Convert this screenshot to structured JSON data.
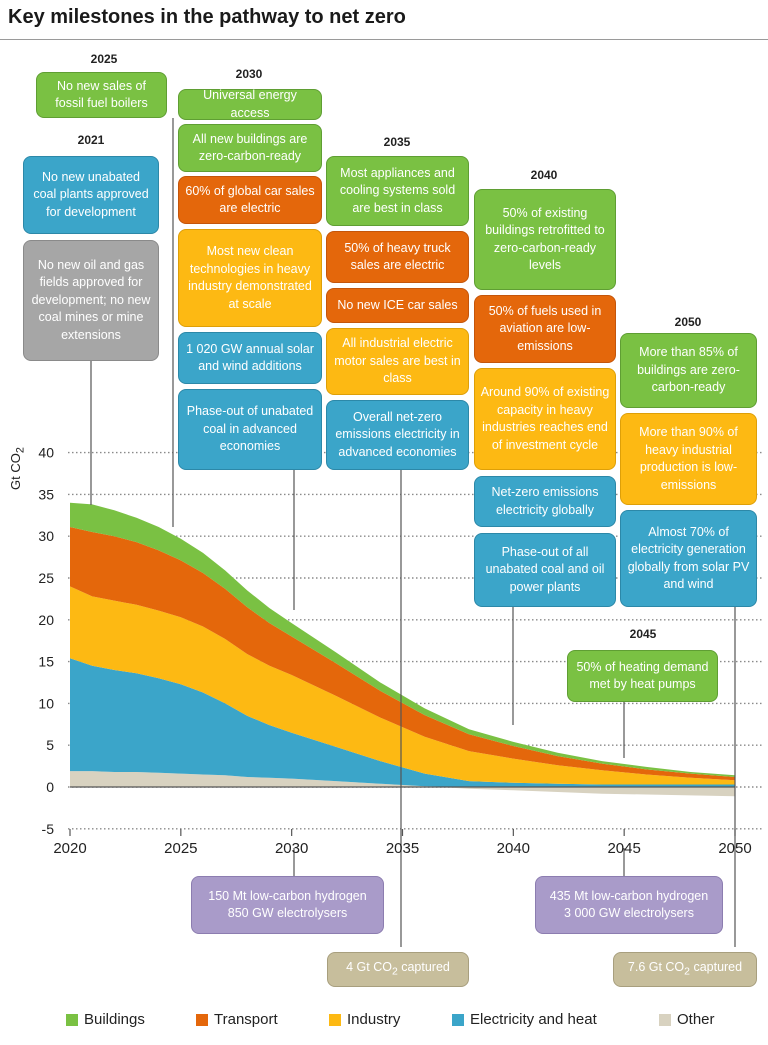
{
  "title": "Key milestones in the pathway to net zero",
  "colors": {
    "buildings": "#7ac143",
    "transport": "#e4670b",
    "industry": "#fdb913",
    "electricity": "#3ba5c9",
    "other": "#d8d2c0"
  },
  "chart_data": {
    "type": "area",
    "ylabel": "Gt CO",
    "ylabel_sub": "2",
    "ylim": [
      -5,
      40
    ],
    "yticks": [
      "40",
      "35",
      "30",
      "25",
      "20",
      "15",
      "10",
      "5",
      "0",
      "-5"
    ],
    "xticks": [
      "2020",
      "2025",
      "2030",
      "2035",
      "2040",
      "2045",
      "2050"
    ],
    "x": [
      2020,
      2021,
      2022,
      2023,
      2024,
      2025,
      2026,
      2027,
      2028,
      2029,
      2030,
      2032,
      2034,
      2036,
      2038,
      2040,
      2042,
      2044,
      2046,
      2048,
      2050
    ],
    "series": [
      {
        "name": "Other",
        "values": [
          1.9,
          1.9,
          1.8,
          1.8,
          1.7,
          1.6,
          1.5,
          1.4,
          1.2,
          1.1,
          1.0,
          0.7,
          0.4,
          0.1,
          -0.2,
          -0.4,
          -0.6,
          -0.8,
          -0.9,
          -1.0,
          -1.1
        ]
      },
      {
        "name": "Electricity and heat",
        "values": [
          13.5,
          12.6,
          12.2,
          11.8,
          11.3,
          10.7,
          9.8,
          8.6,
          7.3,
          6.3,
          5.5,
          4.1,
          2.7,
          1.5,
          0.7,
          0.5,
          0.4,
          0.3,
          0.3,
          0.3,
          0.3
        ]
      },
      {
        "name": "Industry",
        "values": [
          8.6,
          8.3,
          8.3,
          8.2,
          8.1,
          8.0,
          7.9,
          7.7,
          7.4,
          7.1,
          6.9,
          6.1,
          5.2,
          4.4,
          3.6,
          2.9,
          2.2,
          1.7,
          1.2,
          0.8,
          0.5
        ]
      },
      {
        "name": "Transport",
        "values": [
          7.1,
          7.7,
          7.7,
          7.5,
          7.2,
          6.8,
          6.4,
          6.0,
          5.6,
          5.1,
          4.6,
          3.9,
          3.2,
          2.6,
          2.0,
          1.5,
          1.1,
          0.8,
          0.6,
          0.5,
          0.4
        ]
      },
      {
        "name": "Buildings",
        "values": [
          2.9,
          3.3,
          3.1,
          2.9,
          2.8,
          2.6,
          2.4,
          2.2,
          2.0,
          1.8,
          1.6,
          1.3,
          1.0,
          0.8,
          0.6,
          0.5,
          0.4,
          0.3,
          0.3,
          0.2,
          0.2
        ]
      }
    ],
    "legend": [
      "Buildings",
      "Transport",
      "Industry",
      "Electricity and heat",
      "Other"
    ],
    "legend_position": "bottom"
  },
  "years": {
    "y2025": "2025",
    "y2030": "2030",
    "y2021": "2021",
    "y2035": "2035",
    "y2040": "2040",
    "y2050": "2050",
    "y2045": "2045"
  },
  "milestones": {
    "fossil_boilers": "No new sales of fossil fuel boilers",
    "energy_access": "Universal energy access",
    "buildings_zcr": "All new buildings are zero-carbon-ready",
    "car_sales": "60% of global car sales are electric",
    "clean_tech": "Most new clean technologies in heavy industry demonstrated at scale",
    "solar_wind": "1 020 GW annual solar and wind additions",
    "coal_phaseout_adv": "Phase-out of unabated coal in advanced economies",
    "coal_plants": "No new unabated coal plants approved for development",
    "oil_gas": "No new oil and gas fields approved for development; no new coal mines or mine extensions",
    "appliances": "Most appliances and cooling systems sold are best in class",
    "heavy_truck": "50% of heavy truck sales are electric",
    "no_ice": "No new ICE car sales",
    "motor_sales": "All industrial electric motor sales are best in class",
    "netzero_elec_adv": "Overall net-zero emissions electricity in advanced economies",
    "existing_buildings": "50% of existing buildings retrofitted to zero-carbon-ready levels",
    "aviation": "50% of fuels used in aviation are low-emissions",
    "heavy_capacity": "Around 90% of existing capacity in heavy industries reaches end of investment cycle",
    "netzero_elec_global": "Net-zero emissions electricity globally",
    "coal_oil_phaseout": "Phase-out of all unabated coal and oil power plants",
    "buildings_85": "More than 85% of buildings are zero-carbon-ready",
    "heavy_90": "More than 90% of heavy industrial production is low-emissions",
    "solar_70": "Almost 70% of electricity generation globally from solar PV and wind",
    "heat_pumps": "50% of heating demand met by heat pumps",
    "hydrogen_2030_a": "150 Mt low-carbon hydrogen",
    "hydrogen_2030_b": "850 GW electrolysers",
    "hydrogen_2050_a": "435 Mt low-carbon hydrogen",
    "hydrogen_2050_b": "3 000 GW electrolysers",
    "ccs_2035": "4 Gt CO",
    "ccs_2035_sub": "2",
    "ccs_2035_tail": " captured",
    "ccs_2050": "7.6 Gt CO",
    "ccs_2050_sub": "2",
    "ccs_2050_tail": " captured"
  }
}
